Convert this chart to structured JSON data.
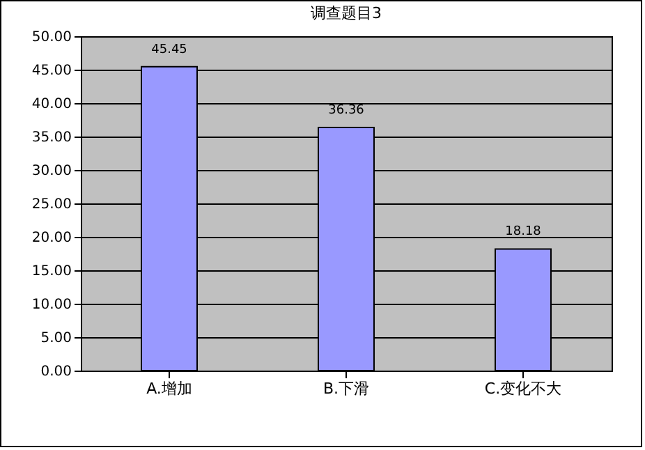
{
  "chart_data": {
    "type": "bar",
    "title": "调查题目3",
    "categories": [
      "A.增加",
      "B.下滑",
      "C.变化不大"
    ],
    "values": [
      45.45,
      36.36,
      18.18
    ],
    "color": "#9999ff",
    "ylim": [
      0,
      50
    ],
    "yticks": [
      {
        "value": 0,
        "label": "0.00"
      },
      {
        "value": 5,
        "label": "5.00"
      },
      {
        "value": 10,
        "label": "10.00"
      },
      {
        "value": 15,
        "label": "15.00"
      },
      {
        "value": 20,
        "label": "20.00"
      },
      {
        "value": 25,
        "label": "25.00"
      },
      {
        "value": 30,
        "label": "30.00"
      },
      {
        "value": 35,
        "label": "35.00"
      },
      {
        "value": 40,
        "label": "40.00"
      },
      {
        "value": 45,
        "label": "45.00"
      },
      {
        "value": 50,
        "label": "50.00"
      }
    ],
    "grid": "y",
    "data_labels": true
  }
}
